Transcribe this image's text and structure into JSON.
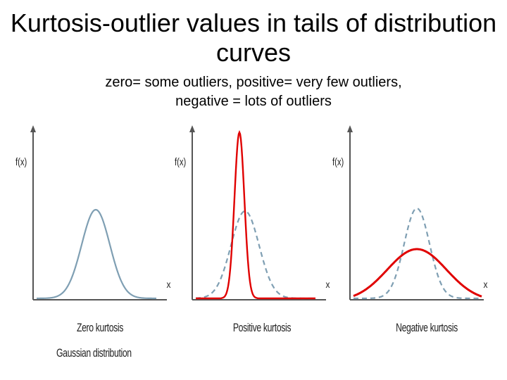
{
  "title": "Kurtosis-outlier values in tails of distribution curves",
  "subtitle_line1": "zero= some outliers, positive= very few outliers,",
  "subtitle_line2": "negative = lots of outliers",
  "colors": {
    "gaussian": "#7f9fb3",
    "highlight": "#e00000",
    "axis": "#555555"
  },
  "panels": [
    {
      "ylabel": "f(x)",
      "xlabel": "x",
      "caption": "Zero kurtosis",
      "caption2": "Gaussian distribution",
      "curve": "gaussian"
    },
    {
      "ylabel": "f(x)",
      "xlabel": "x",
      "caption": "Positive kurtosis",
      "curve": "peaked"
    },
    {
      "ylabel": "f(x)",
      "xlabel": "x",
      "caption": "Negative kurtosis",
      "curve": "flat"
    }
  ]
}
